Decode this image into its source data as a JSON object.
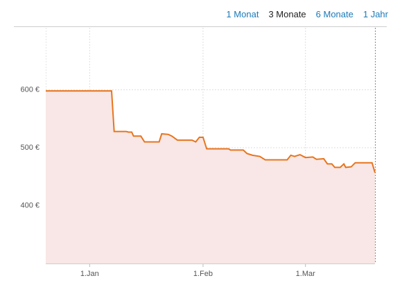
{
  "tabs": [
    {
      "label": "1 Monat",
      "active": false
    },
    {
      "label": "3 Monate",
      "active": true
    },
    {
      "label": "6 Monate",
      "active": false
    },
    {
      "label": "1 Jahr",
      "active": false
    }
  ],
  "chart_data": {
    "type": "area",
    "color": "#e8741c",
    "fill": "#f8e7e6",
    "x": [
      -12,
      6,
      6.7,
      10,
      10.6,
      11.5,
      12,
      14,
      15,
      19,
      19.7,
      21.5,
      22.5,
      24,
      28,
      29,
      30,
      31,
      32,
      38,
      38.5,
      42,
      43,
      44.5,
      46.5,
      48,
      54,
      55,
      56,
      57.5,
      59,
      61,
      62,
      64,
      65,
      66.2,
      67,
      68.5,
      69.5,
      70,
      71.5,
      72.6,
      77.2,
      78
    ],
    "values": [
      598,
      598,
      528,
      528,
      527,
      527,
      520,
      520,
      510,
      510,
      524,
      523,
      520,
      513,
      513,
      510,
      518,
      518,
      498,
      498,
      496,
      496,
      490,
      487,
      485,
      479,
      479,
      487,
      485,
      488,
      483,
      484,
      480,
      481,
      472,
      472,
      466,
      466,
      472,
      466,
      467,
      474,
      474,
      457
    ],
    "xlim": [
      -12,
      78
    ],
    "xticks": [
      {
        "value": 0,
        "label": "1.Jan"
      },
      {
        "value": 31,
        "label": "1.Feb"
      },
      {
        "value": 59,
        "label": "1.Mar"
      }
    ],
    "ylim": [
      300,
      700
    ],
    "yticks": [
      {
        "value": 400,
        "label": "400 €"
      },
      {
        "value": 500,
        "label": "500 €"
      },
      {
        "value": 600,
        "label": "600 €"
      }
    ],
    "grid": true
  }
}
